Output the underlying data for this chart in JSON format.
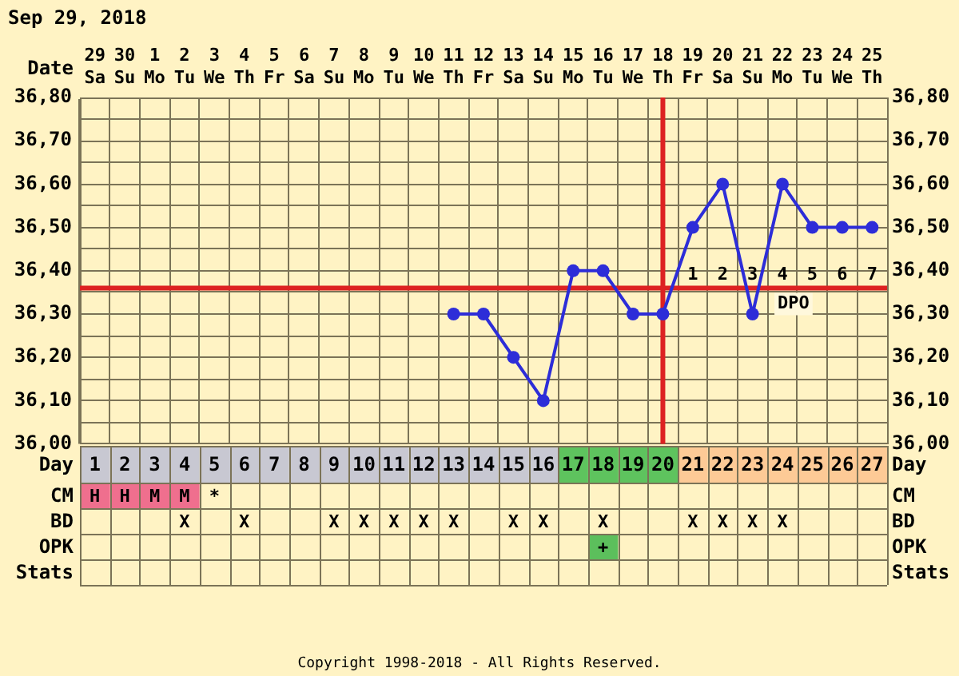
{
  "chart_data": [
    {
      "type": "line",
      "title": "Sep 29, 2018",
      "xlabel": "Date",
      "categories": [
        "29 Sa",
        "30 Su",
        "1 Mo",
        "2 Tu",
        "3 We",
        "4 Th",
        "5 Fr",
        "6 Sa",
        "7 Su",
        "8 Mo",
        "9 Tu",
        "10 We",
        "11 Th",
        "12 Fr",
        "13 Sa",
        "14 Su",
        "15 Mo",
        "16 Tu",
        "17 We",
        "18 Th",
        "19 Fr",
        "20 Sa",
        "21 Su",
        "22 Mo",
        "23 Tu",
        "24 We",
        "25 Th"
      ],
      "values": [
        null,
        null,
        null,
        null,
        null,
        null,
        null,
        null,
        null,
        null,
        null,
        null,
        36.3,
        36.3,
        36.2,
        36.1,
        36.4,
        36.4,
        36.3,
        36.3,
        36.5,
        36.6,
        36.3,
        36.6,
        36.5,
        36.5,
        36.5
      ],
      "color": "#2d2dd8",
      "marker": "circle",
      "ylim": [
        36.0,
        36.8
      ],
      "yticks": [
        {
          "value": 36.0,
          "label": "36,00"
        },
        {
          "value": 36.05,
          "label": null
        },
        {
          "value": 36.1,
          "label": "36,10"
        },
        {
          "value": 36.15,
          "label": null
        },
        {
          "value": 36.2,
          "label": "36,20"
        },
        {
          "value": 36.25,
          "label": null
        },
        {
          "value": 36.3,
          "label": "36,30"
        },
        {
          "value": 36.35,
          "label": null
        },
        {
          "value": 36.4,
          "label": "36,40"
        },
        {
          "value": 36.45,
          "label": null
        },
        {
          "value": 36.5,
          "label": "36,50"
        },
        {
          "value": 36.55,
          "label": null
        },
        {
          "value": 36.6,
          "label": "36,60"
        },
        {
          "value": 36.65,
          "label": null
        },
        {
          "value": 36.7,
          "label": "36,70"
        },
        {
          "value": 36.75,
          "label": null
        },
        {
          "value": 36.8,
          "label": "36,80"
        }
      ],
      "y2lim": [
        36.0,
        36.8
      ],
      "y2ticks": [
        {
          "value": 36.0,
          "label": "36,00"
        },
        {
          "value": 36.05,
          "label": null
        },
        {
          "value": 36.1,
          "label": "36,10"
        },
        {
          "value": 36.15,
          "label": null
        },
        {
          "value": 36.2,
          "label": "36,20"
        },
        {
          "value": 36.25,
          "label": null
        },
        {
          "value": 36.3,
          "label": "36,30"
        },
        {
          "value": 36.35,
          "label": null
        },
        {
          "value": 36.4,
          "label": "36,40"
        },
        {
          "value": 36.45,
          "label": null
        },
        {
          "value": 36.5,
          "label": "36,50"
        },
        {
          "value": 36.55,
          "label": null
        },
        {
          "value": 36.6,
          "label": "36,60"
        },
        {
          "value": 36.65,
          "label": null
        },
        {
          "value": 36.7,
          "label": "36,70"
        },
        {
          "value": 36.75,
          "label": null
        },
        {
          "value": 36.8,
          "label": "36,80"
        }
      ],
      "grid": true,
      "ref_lines": [
        {
          "axis": "y",
          "value": 36.36,
          "color": "#dd2222"
        },
        {
          "axis": "x",
          "value": "18 Th",
          "color": "#dd2222"
        }
      ],
      "annotations": [
        "1",
        "2",
        "3",
        "4",
        "5",
        "6",
        "7",
        "DPO"
      ]
    },
    {
      "type": "heatmap",
      "categories": [
        null,
        null,
        null,
        null,
        null,
        null,
        null,
        null,
        null,
        null,
        null,
        null,
        null,
        null,
        null,
        null,
        null,
        null,
        null,
        null,
        null,
        null,
        null,
        null,
        null,
        null,
        null
      ],
      "y_categories": [
        "Day",
        "CM",
        "BD",
        "OPK",
        "Stats"
      ],
      "y2_categories": [
        "Day",
        "CM",
        "BD",
        "OPK",
        "Stats"
      ],
      "cells": [
        [
          null,
          null,
          null,
          null,
          null,
          null,
          null,
          null,
          null,
          null,
          null,
          null,
          null,
          null,
          null,
          null,
          null,
          null,
          null,
          null,
          null,
          null,
          null,
          null,
          null,
          null,
          null
        ],
        [
          null,
          null,
          null,
          null,
          null,
          null,
          null,
          null,
          null,
          null,
          null,
          null,
          null,
          null,
          null,
          null,
          null,
          null,
          null,
          null,
          null,
          null,
          null,
          null,
          null,
          null,
          null
        ],
        [
          null,
          null,
          null,
          null,
          null,
          null,
          null,
          null,
          null,
          null,
          null,
          null,
          null,
          null,
          null,
          null,
          null,
          null,
          null,
          null,
          null,
          null,
          null,
          null,
          null,
          null,
          null
        ],
        [
          null,
          null,
          null,
          null,
          null,
          null,
          null,
          null,
          null,
          null,
          null,
          null,
          null,
          null,
          null,
          null,
          null,
          null,
          null,
          null,
          null,
          null,
          null,
          null,
          null,
          null,
          null
        ],
        [
          null,
          null,
          null,
          null,
          null,
          null,
          null,
          null,
          null,
          null,
          null,
          null,
          null,
          null,
          null,
          null,
          null,
          null,
          null,
          null,
          null,
          null,
          null,
          null,
          null,
          null,
          null
        ]
      ],
      "cell_labels": [
        [
          "1",
          "2",
          "3",
          "4",
          "5",
          "6",
          "7",
          "8",
          "9",
          "10",
          "11",
          "12",
          "13",
          "14",
          "15",
          "16",
          "17",
          "18",
          "19",
          "20",
          "21",
          "22",
          "23",
          "24",
          "25",
          "26",
          "27"
        ],
        [
          "H",
          "H",
          "M",
          "M",
          "*",
          null,
          null,
          null,
          null,
          null,
          null,
          null,
          null,
          null,
          null,
          null,
          null,
          null,
          null,
          null,
          null,
          null,
          null,
          null,
          null,
          null,
          null
        ],
        [
          null,
          null,
          null,
          "X",
          null,
          "X",
          null,
          null,
          "X",
          "X",
          "X",
          "X",
          "X",
          null,
          "X",
          "X",
          null,
          "X",
          null,
          null,
          "X",
          "X",
          "X",
          "X",
          null,
          null,
          null
        ],
        [
          null,
          null,
          null,
          null,
          null,
          null,
          null,
          null,
          null,
          null,
          null,
          null,
          null,
          null,
          null,
          null,
          null,
          "+",
          null,
          null,
          null,
          null,
          null,
          null,
          null,
          null,
          null
        ],
        [
          null,
          null,
          null,
          null,
          null,
          null,
          null,
          null,
          null,
          null,
          null,
          null,
          null,
          null,
          null,
          null,
          null,
          null,
          null,
          null,
          null,
          null,
          null,
          null,
          null,
          null,
          null
        ]
      ],
      "colors": [
        [
          "#c8c8d2",
          "#c8c8d2",
          "#c8c8d2",
          "#c8c8d2",
          "#c8c8d2",
          "#c8c8d2",
          "#c8c8d2",
          "#c8c8d2",
          "#c8c8d2",
          "#c8c8d2",
          "#c8c8d2",
          "#c8c8d2",
          "#c8c8d2",
          "#c8c8d2",
          "#c8c8d2",
          "#c8c8d2",
          "#5ec35e",
          "#5ec35e",
          "#5ec35e",
          "#5ec35e",
          "#fdca96",
          "#fdca96",
          "#fdca96",
          "#fdca96",
          "#fdca96",
          "#fdca96",
          "#fdca96"
        ],
        [
          "#ef6f8e",
          "#ef6f8e",
          "#ef6f8e",
          "#ef6f8e",
          null,
          null,
          null,
          null,
          null,
          null,
          null,
          null,
          null,
          null,
          null,
          null,
          null,
          null,
          null,
          null,
          null,
          null,
          null,
          null,
          null,
          null,
          null
        ],
        [
          null,
          null,
          null,
          null,
          null,
          null,
          null,
          null,
          null,
          null,
          null,
          null,
          null,
          null,
          null,
          null,
          null,
          null,
          null,
          null,
          null,
          null,
          null,
          null,
          null,
          null,
          null
        ],
        [
          null,
          null,
          null,
          null,
          null,
          null,
          null,
          null,
          null,
          null,
          null,
          null,
          null,
          null,
          null,
          null,
          null,
          "#5cbf5c",
          null,
          null,
          null,
          null,
          null,
          null,
          null,
          null,
          null
        ],
        [
          null,
          null,
          null,
          null,
          null,
          null,
          null,
          null,
          null,
          null,
          null,
          null,
          null,
          null,
          null,
          null,
          null,
          null,
          null,
          null,
          null,
          null,
          null,
          null,
          null,
          null,
          null
        ]
      ],
      "grid": true,
      "annotations": [
        "Copyright 1998-2018 - All Rights Reserved."
      ]
    }
  ]
}
